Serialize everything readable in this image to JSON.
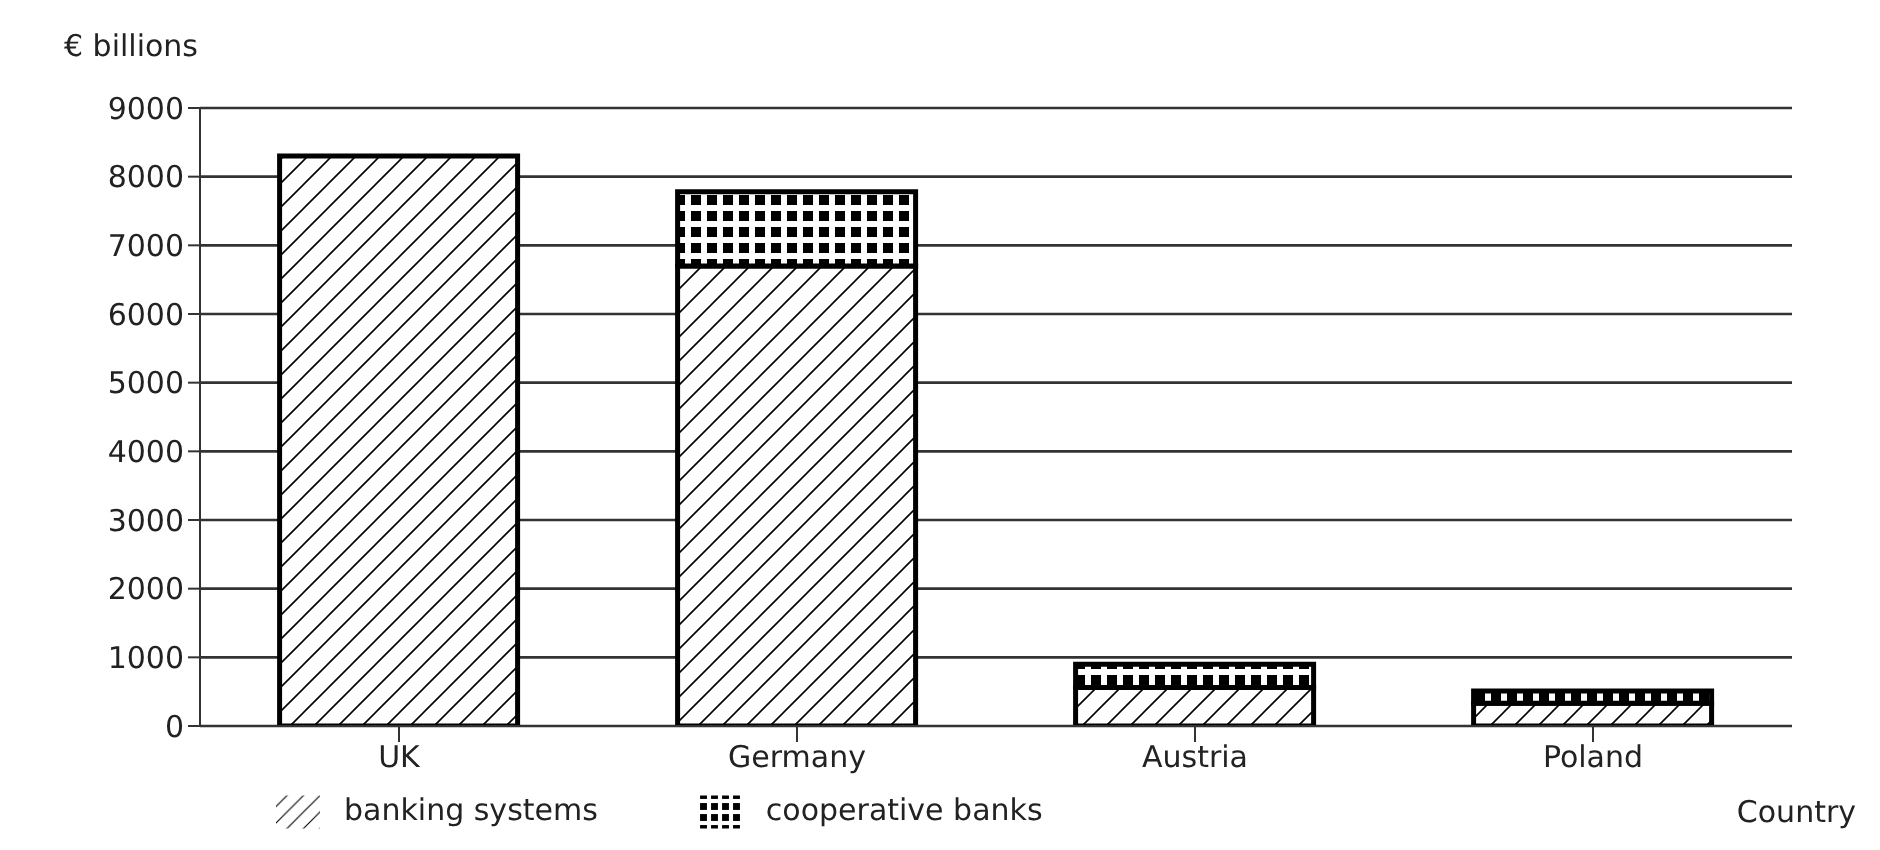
{
  "chart_data": {
    "type": "bar",
    "stacked": true,
    "ylabel": "€ billions",
    "xlabel": "Country",
    "categories": [
      "UK",
      "Germany",
      "Austria",
      "Poland"
    ],
    "series": [
      {
        "name": "banking systems",
        "color": "#000000",
        "values": [
          8300,
          6700,
          560,
          330
        ]
      },
      {
        "name": "cooperative banks",
        "color": "#000000",
        "values": [
          0,
          1080,
          340,
          180
        ]
      }
    ],
    "ylim": [
      0,
      9000
    ],
    "yticks": [
      0,
      1000,
      2000,
      3000,
      4000,
      5000,
      6000,
      7000,
      8000,
      9000
    ],
    "grid": "y",
    "legend": "bottom left"
  }
}
